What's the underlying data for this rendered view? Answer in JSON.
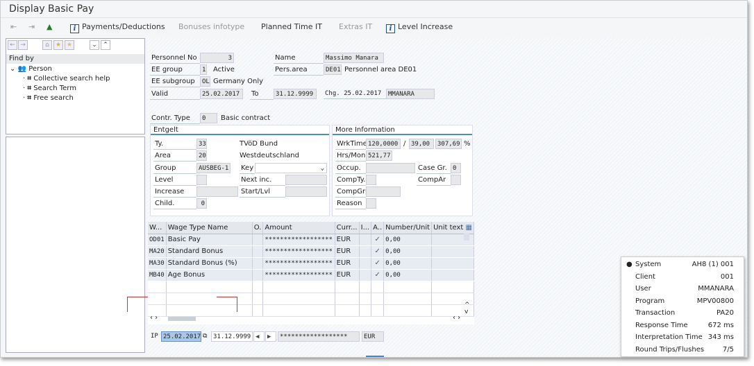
{
  "window": {
    "title": "Display Basic Pay"
  },
  "toolbar": {
    "items": [
      {
        "label": "Payments/Deductions",
        "icon": "info-icon",
        "enabled": true
      },
      {
        "label": "Bonuses infotype",
        "enabled": false
      },
      {
        "label": "Planned Time IT",
        "enabled": true
      },
      {
        "label": "Extras IT",
        "enabled": false
      },
      {
        "label": "Level Increase",
        "icon": "info-icon",
        "enabled": true
      }
    ]
  },
  "left": {
    "find_by": "Find by",
    "person": "Person",
    "items": [
      "Collective search help",
      "Search Term",
      "Free search"
    ]
  },
  "header": {
    "personnel_no_label": "Personnel No",
    "personnel_no": "3",
    "name_label": "Name",
    "name": "Massimo Manara",
    "ee_group_label": "EE group",
    "ee_group": "1",
    "ee_group_text": "Active",
    "pers_area_label": "Pers.area",
    "pers_area": "DE01",
    "pers_area_text": "Personnel area DE01",
    "ee_subgroup_label": "EE subgroup",
    "ee_subgroup": "OL",
    "ee_subgroup_text": "Germany Only",
    "valid_label": "Valid",
    "valid_from": "25.02.2017",
    "to_label": "To",
    "valid_to": "31.12.9999",
    "chg_label": "Chg.",
    "chg_date": "25.02.2017",
    "chg_user": "MMANARA"
  },
  "contract": {
    "label": "Contr. Type",
    "value": "0",
    "text": "Basic contract"
  },
  "entgelt": {
    "title": "Entgelt",
    "ty_label": "Ty.",
    "ty": "33",
    "ty_text": "TVöD Bund",
    "area_label": "Area",
    "area": "20",
    "area_text": "Westdeutschland",
    "group_label": "Group",
    "group": "AUSBEG-1",
    "key_label": "Key",
    "key": "",
    "level_label": "Level",
    "level": "",
    "next_inc_label": "Next inc.",
    "next_inc": "",
    "increase_label": "Increase",
    "increase": "",
    "start_lvl_label": "Start/Lvl",
    "start_lvl": "",
    "child_label": "Child.",
    "child": "0"
  },
  "more": {
    "title": "More Information",
    "wrktime_label": "WrkTime",
    "wrktime": "120,0000",
    "slash": "/",
    "hours": "39,00",
    "percent": "307,69",
    "percent_sign": "%",
    "hrs_mon_label": "Hrs/Mon",
    "hrs_mon": "521,77",
    "occup_label": "Occup.",
    "occup": "",
    "case_gr_label": "Case Gr.",
    "case_gr": "0",
    "comp_ty_label": "CompTy.",
    "comp_ty": "",
    "comp_ar_label": "CompAr",
    "comp_ar": "",
    "comp_grp_label": "CompGrp",
    "comp_grp": "",
    "reason_label": "Reason",
    "reason": ""
  },
  "table": {
    "columns": [
      "W...",
      "Wage Type Name",
      "O.",
      "Amount",
      "Curr...",
      "I...",
      "A..",
      "Number/Unit",
      "Unit text"
    ],
    "rows": [
      {
        "wt": "OD01",
        "name": "Basic Pay",
        "amount": "******************",
        "curr": "EUR",
        "checked": true,
        "number": "0,00"
      },
      {
        "wt": "MA20",
        "name": "Standard Bonus",
        "amount": "******************",
        "curr": "EUR",
        "checked": true,
        "number": "0,00"
      },
      {
        "wt": "MA30",
        "name": "Standard Bonus (%)",
        "amount": "******************",
        "curr": "EUR",
        "checked": true,
        "number": "0,00"
      },
      {
        "wt": "MB40",
        "name": "Age Bonus",
        "amount": "******************",
        "curr": "EUR",
        "checked": true,
        "number": "0,00"
      }
    ]
  },
  "footer": {
    "ip": "IP",
    "from": "25.02.2017",
    "to": "31.12.9999",
    "amount": "******************",
    "curr": "EUR"
  },
  "status_popup": {
    "rows": [
      {
        "label": "System",
        "value": "AH8 (1) 001"
      },
      {
        "label": "Client",
        "value": "001"
      },
      {
        "label": "User",
        "value": "MMANARA"
      },
      {
        "label": "Program",
        "value": "MPV00800"
      },
      {
        "label": "Transaction",
        "value": "PA20"
      },
      {
        "label": "Response Time",
        "value": "672 ms"
      },
      {
        "label": "Interpretation Time",
        "value": "343 ms"
      },
      {
        "label": "Round Trips/Flushes",
        "value": "7/5"
      }
    ]
  }
}
